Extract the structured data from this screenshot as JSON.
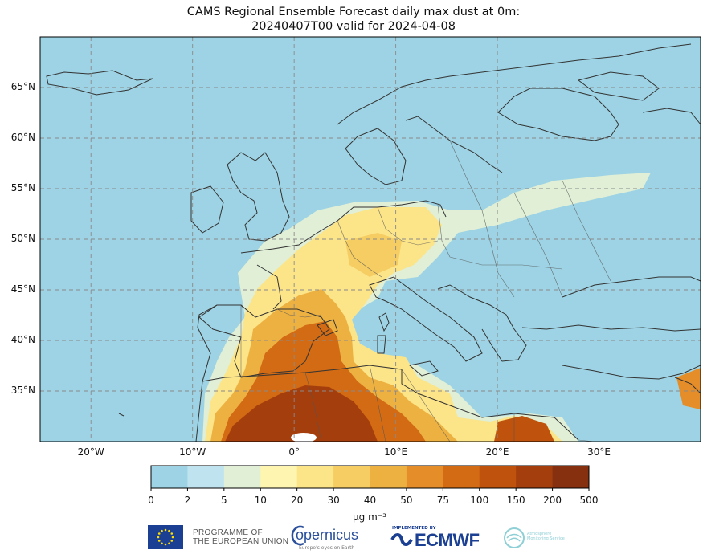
{
  "title_line1": "CAMS Regional Ensemble Forecast daily max dust at 0m:",
  "title_line2": "20240407T00 valid for 2024-04-08",
  "lat_labels": [
    "65°N",
    "60°N",
    "55°N",
    "50°N",
    "45°N",
    "40°N",
    "35°N"
  ],
  "lat_values": [
    65,
    60,
    55,
    50,
    45,
    40,
    35
  ],
  "lon_labels": [
    "20°W",
    "10°W",
    "0°",
    "10°E",
    "20°E",
    "30°E"
  ],
  "lon_values": [
    -20,
    -10,
    0,
    10,
    20,
    30
  ],
  "map_extent": {
    "lon_min": -25,
    "lon_max": 40,
    "lat_min": 30,
    "lat_max": 70
  },
  "colorbar": {
    "ticks": [
      "0",
      "2",
      "5",
      "10",
      "20",
      "30",
      "40",
      "50",
      "75",
      "100",
      "150",
      "200",
      "500"
    ],
    "colors": [
      "#9dd3e4",
      "#bfe4ef",
      "#e0efd6",
      "#fdf5b0",
      "#fce489",
      "#f5cd63",
      "#edb142",
      "#e58d28",
      "#d26b14",
      "#bf520d",
      "#a53e0d",
      "#87300f"
    ],
    "unit": "µg m⁻³"
  },
  "colors": {
    "ocean": "#9dd3e4",
    "coastline": "#333333",
    "grid": "#8a8a8a"
  },
  "logos": {
    "eu_text_1": "PROGRAMME OF",
    "eu_text_2": "THE EUROPEAN UNION",
    "copernicus": "opernicus",
    "copernicus_sub": "Europe's eyes on Earth",
    "ecmwf_pre": "IMPLEMENTED BY",
    "ecmwf": "ECMWF",
    "atmosphere_1": "Atmosphere",
    "atmosphere_2": "Monitoring Service"
  }
}
